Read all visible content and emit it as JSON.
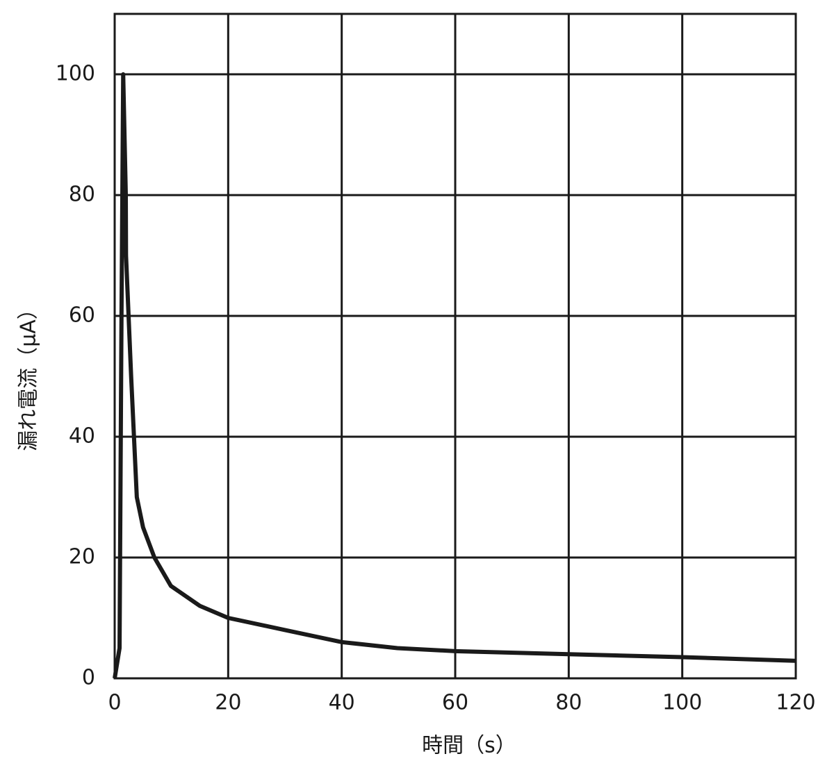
{
  "chart_data": {
    "type": "line",
    "x_label": "時間（s）",
    "y_label": "漏れ電流（μA）",
    "x": [
      0,
      0.86,
      1.2,
      1.35,
      1.5,
      1.96,
      2.0,
      2.9,
      3.9,
      5,
      7,
      9.9,
      15,
      20,
      30,
      40,
      49.8,
      60,
      80,
      100,
      120
    ],
    "series": [
      {
        "name": "漏れ電流",
        "color": "#1a1a1a",
        "values": [
          0,
          5,
          60,
          80,
          100,
          80,
          70,
          50,
          30,
          25,
          20,
          15.3,
          12,
          10,
          8,
          6,
          5,
          4.5,
          4,
          3.5,
          2.9
        ]
      }
    ],
    "xlim": [
      0,
      120
    ],
    "ylim": [
      0,
      110
    ],
    "xticks": [
      0,
      20,
      40,
      60,
      80,
      100,
      120
    ],
    "yticks": [
      0,
      20,
      40,
      60,
      80,
      100
    ],
    "grid": true
  }
}
